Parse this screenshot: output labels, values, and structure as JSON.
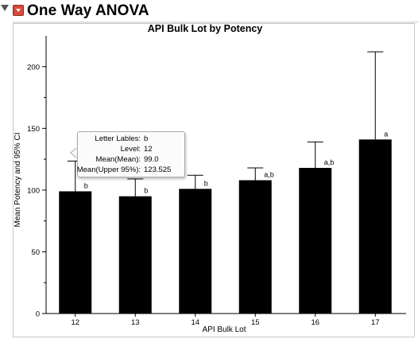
{
  "report": {
    "title": "One Way ANOVA"
  },
  "chart_data": {
    "type": "bar",
    "title": "API Bulk Lot by Potency",
    "xlabel": "API Bulk Lot",
    "ylabel": "Mean Potency and 95% CI",
    "ylim": [
      0,
      225
    ],
    "yticks": [
      0,
      50,
      100,
      150,
      200
    ],
    "categories": [
      "12",
      "13",
      "14",
      "15",
      "16",
      "17"
    ],
    "series": [
      {
        "values": [
          99.0,
          95,
          101,
          108,
          118,
          141
        ],
        "ci_upper": [
          123.525,
          109,
          112,
          118,
          139,
          212
        ],
        "letters": [
          "b",
          "b",
          "b",
          "a,b",
          "a,b",
          "a"
        ]
      }
    ],
    "bar_color": "#000000",
    "grid": false,
    "legend": "none"
  },
  "tooltip": {
    "rows": [
      {
        "label": "Letter Lables:",
        "value": "b"
      },
      {
        "label": "Level:",
        "value": "12"
      },
      {
        "label": "Mean(Mean):",
        "value": "99.0"
      },
      {
        "label": "Mean(Upper 95%):",
        "value": "123.525"
      }
    ]
  }
}
